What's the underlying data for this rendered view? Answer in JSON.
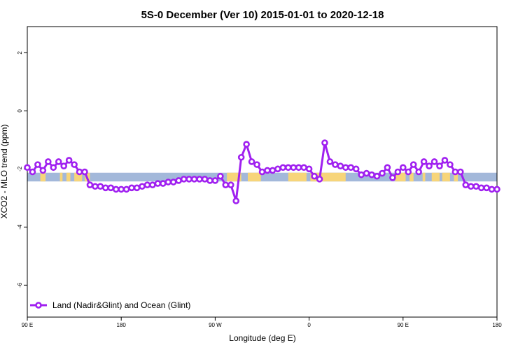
{
  "chart_data": {
    "type": "line",
    "title": "5S-0 December (Ver 10)   2015-01-01 to 2020-12-18",
    "xlabel": "Longitude (deg E)",
    "ylabel": "XCO2 - MLO trend (ppm)",
    "xlim": [
      90,
      450
    ],
    "ylim": [
      -7.1,
      2.9
    ],
    "x_ticks": [
      {
        "value": 90,
        "label": "90 E"
      },
      {
        "value": 162,
        "label": "180"
      },
      {
        "value": 234,
        "label": "90 W"
      },
      {
        "value": 306,
        "label": "0"
      },
      {
        "value": 378,
        "label": "90 E"
      },
      {
        "value": 450,
        "label": "180"
      }
    ],
    "y_ticks": [
      {
        "value": 2,
        "label": "2"
      },
      {
        "value": 0,
        "label": "0"
      },
      {
        "value": -2,
        "label": "-2"
      },
      {
        "value": -4,
        "label": "-4"
      },
      {
        "value": -6,
        "label": "-6"
      }
    ],
    "series": [
      {
        "name": "Land (Nadir&Glint) and Ocean (Glint)",
        "color": "#a020f0",
        "x": [
          90,
          94,
          98,
          102,
          106,
          110,
          114,
          118,
          122,
          126,
          130,
          134,
          138,
          142,
          146,
          150,
          154,
          158,
          162,
          166,
          170,
          174,
          178,
          182,
          186,
          190,
          194,
          198,
          202,
          206,
          210,
          214,
          218,
          222,
          226,
          230,
          234,
          238,
          242,
          246,
          250,
          254,
          258,
          262,
          266,
          270,
          274,
          278,
          282,
          286,
          290,
          294,
          298,
          302,
          306,
          310,
          314,
          318,
          322,
          326,
          330,
          334,
          338,
          342,
          346,
          350,
          354,
          358,
          362,
          366,
          370,
          374,
          378,
          382,
          386,
          390,
          394,
          398,
          402,
          406,
          410,
          414,
          418,
          422,
          426,
          430,
          434,
          438,
          442,
          446,
          450
        ],
        "values": [
          -1.95,
          -2.1,
          -1.85,
          -2.05,
          -1.75,
          -1.95,
          -1.75,
          -1.9,
          -1.7,
          -1.85,
          -2.1,
          -2.1,
          -2.55,
          -2.6,
          -2.6,
          -2.65,
          -2.65,
          -2.7,
          -2.7,
          -2.7,
          -2.65,
          -2.65,
          -2.6,
          -2.55,
          -2.55,
          -2.5,
          -2.5,
          -2.45,
          -2.45,
          -2.4,
          -2.35,
          -2.35,
          -2.35,
          -2.35,
          -2.35,
          -2.4,
          -2.4,
          -2.25,
          -2.55,
          -2.55,
          -3.1,
          -1.6,
          -1.15,
          -1.75,
          -1.85,
          -2.1,
          -2.05,
          -2.05,
          -2.0,
          -1.95,
          -1.95,
          -1.95,
          -1.95,
          -1.95,
          -2.0,
          -2.25,
          -2.35,
          -1.1,
          -1.75,
          -1.85,
          -1.9,
          -1.95,
          -1.95,
          -2.0,
          -2.2,
          -2.15,
          -2.2,
          -2.25,
          -2.15,
          -1.95,
          -2.3,
          -2.1,
          -1.95,
          -2.1,
          -1.85,
          -2.1,
          -1.75,
          -1.9,
          -1.75,
          -1.9,
          -1.7,
          -1.85,
          -2.1,
          -2.1,
          -2.55,
          -2.6,
          -2.6,
          -2.65,
          -2.65,
          -2.7,
          -2.7
        ]
      }
    ],
    "land_ocean_band": {
      "y_top": -2.13,
      "y_bottom": -2.43,
      "ocean_color": "#a3b8da",
      "land_color": "#f7d57a"
    },
    "land_segments": [
      [
        100,
        104
      ],
      [
        115,
        117
      ],
      [
        120,
        123
      ],
      [
        126,
        132
      ],
      [
        134,
        138
      ],
      [
        243,
        254
      ],
      [
        259,
        269
      ],
      [
        290,
        304
      ],
      [
        307,
        334
      ],
      [
        372,
        380
      ],
      [
        383,
        386
      ],
      [
        393,
        395
      ],
      [
        400,
        406
      ],
      [
        408,
        414
      ],
      [
        417,
        420
      ]
    ],
    "legend": {
      "position": "bottom-left",
      "label": "Land (Nadir&Glint) and Ocean (Glint)"
    },
    "grid": false
  }
}
